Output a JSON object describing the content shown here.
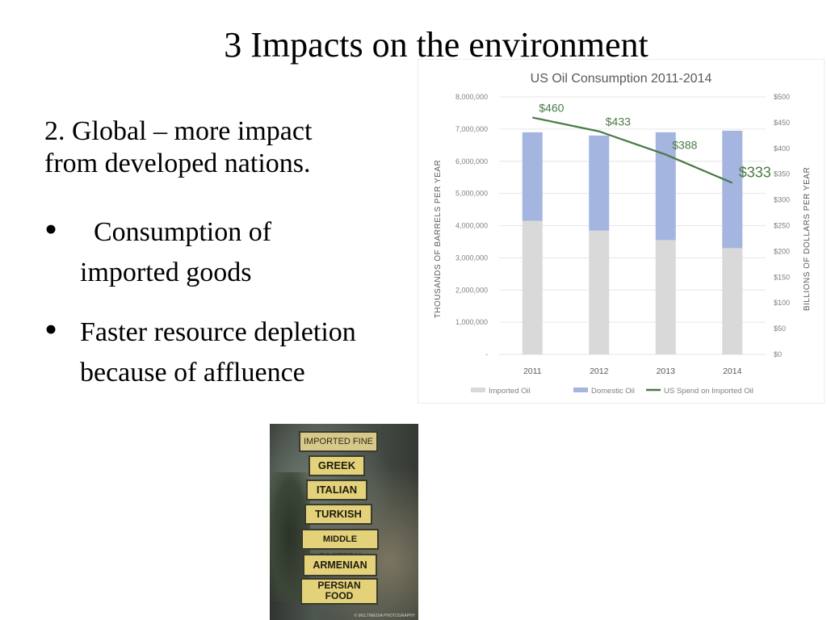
{
  "slide": {
    "title": "3 Impacts on the environment",
    "lead_line1": "2.  Global – more impact",
    "lead_line2": "from developed nations.",
    "bullets": [
      {
        "line1": "  Consumption of",
        "line2": "imported goods"
      },
      {
        "line1": "Faster resource depletion",
        "line2": "because of affluence"
      }
    ],
    "bullet_glyph": "•"
  },
  "photo": {
    "signs": [
      "IMPORTED FINE FOODS",
      "GREEK",
      "ITALIAN",
      "TURKISH",
      "MIDDLE EASTERN",
      "ARMENIAN",
      "PERSIAN",
      "FOOD"
    ],
    "credit": "© MULTIMEDIA PHOTOGRAPHY"
  },
  "chart_data": {
    "type": "bar",
    "title": "US Oil Consumption 2011-2014",
    "categories": [
      "2011",
      "2012",
      "2013",
      "2014"
    ],
    "stacked": true,
    "series": [
      {
        "name": "Imported Oil",
        "values": [
          4150000,
          3850000,
          3550000,
          3300000
        ],
        "color": "#d9d9d9"
      },
      {
        "name": "Domestic Oil",
        "values": [
          2750000,
          2950000,
          3350000,
          3650000
        ],
        "color": "#a4b6e0"
      }
    ],
    "line_series": {
      "name": "US Spend on Imported Oil",
      "values": [
        460,
        433,
        388,
        333
      ],
      "labels": [
        "$460",
        "$433",
        "$388",
        "$333"
      ],
      "color": "#4a7a45",
      "axis": "right"
    },
    "ylabel": "THOUSANDS OF BARRELS PER YEAR",
    "y2label": "BILLIONS OF DOLLARS PER YEAR",
    "ylim": [
      0,
      8000000
    ],
    "y2lim": [
      0,
      500
    ],
    "yticks": [
      "-",
      "1,000,000",
      "2,000,000",
      "3,000,000",
      "4,000,000",
      "5,000,000",
      "6,000,000",
      "7,000,000",
      "8,000,000"
    ],
    "y2ticks": [
      "$0",
      "$50",
      "$100",
      "$150",
      "$200",
      "$250",
      "$300",
      "$350",
      "$400",
      "$450",
      "$500"
    ],
    "grid": true,
    "legend_position": "bottom"
  }
}
